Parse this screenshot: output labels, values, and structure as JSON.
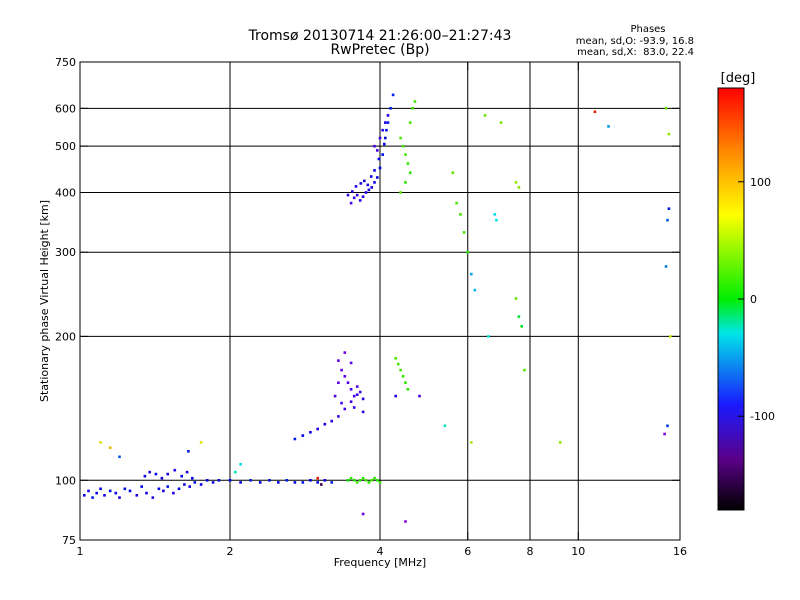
{
  "chart_data": {
    "type": "scatter",
    "title": "Tromsø 20130714 21:26:00–21:27:43",
    "subtitle": "RwPretec (Bp)",
    "xlabel": "Frequency [MHz]",
    "ylabel": "Stationary phase Virtual Height [km]",
    "x_scale": "log",
    "y_scale": "log",
    "xlim": [
      1,
      16
    ],
    "ylim": [
      75,
      750
    ],
    "x_ticks": [
      1,
      2,
      4,
      6,
      8,
      10,
      16
    ],
    "y_ticks": [
      75,
      100,
      200,
      300,
      400,
      500,
      600,
      750
    ],
    "grid_x": [
      2,
      4,
      6,
      8,
      10
    ],
    "grid_y": [
      100,
      200,
      300,
      400,
      500,
      600
    ],
    "info": {
      "title": "Phases",
      "line_o": "mean, sd,O: -93.9, 16.8",
      "line_x": "mean, sd,X:  83.0, 22.4"
    },
    "colorbar": {
      "label": "[deg]",
      "range": [
        -180,
        180
      ],
      "ticks": [
        100,
        0,
        -100
      ]
    },
    "series": [
      {
        "points": [
          [
            1.02,
            93,
            -110
          ],
          [
            1.04,
            95,
            -115
          ],
          [
            1.06,
            92,
            -100
          ],
          [
            1.08,
            94,
            -112
          ],
          [
            1.1,
            96,
            -108
          ],
          [
            1.12,
            93,
            -118
          ],
          [
            1.15,
            95,
            -105
          ],
          [
            1.18,
            94,
            -110
          ],
          [
            1.2,
            92,
            -114
          ],
          [
            1.23,
            96,
            -102
          ],
          [
            1.26,
            95,
            -109
          ],
          [
            1.3,
            93,
            -116
          ],
          [
            1.33,
            97,
            -104
          ],
          [
            1.36,
            94,
            -111
          ],
          [
            1.4,
            92,
            -119
          ],
          [
            1.44,
            96,
            -107
          ],
          [
            1.47,
            95,
            -113
          ],
          [
            1.5,
            97,
            -101
          ],
          [
            1.54,
            94,
            -117
          ],
          [
            1.58,
            96,
            -106
          ],
          [
            1.62,
            98,
            -110
          ],
          [
            1.66,
            97,
            -115
          ],
          [
            1.7,
            99,
            -103
          ],
          [
            1.75,
            98,
            -112
          ],
          [
            1.8,
            100,
            -108
          ],
          [
            1.85,
            99,
            -114
          ],
          [
            1.9,
            100,
            -105
          ],
          [
            1.35,
            102,
            -112
          ],
          [
            1.38,
            104,
            -118
          ],
          [
            1.42,
            103,
            -106
          ],
          [
            1.46,
            101,
            -115
          ],
          [
            1.5,
            103,
            -110
          ],
          [
            1.55,
            105,
            -120
          ],
          [
            1.6,
            102,
            -108
          ],
          [
            1.64,
            104,
            -116
          ],
          [
            1.68,
            101,
            -111
          ],
          [
            2.0,
            100,
            -105
          ],
          [
            2.1,
            99,
            -110
          ],
          [
            2.2,
            100,
            -100
          ],
          [
            2.3,
            99,
            -108
          ],
          [
            2.4,
            100,
            -103
          ],
          [
            2.5,
            99,
            -112
          ],
          [
            2.6,
            100,
            -98
          ],
          [
            2.7,
            99,
            -106
          ],
          [
            2.8,
            99,
            -101
          ],
          [
            2.9,
            100,
            -109
          ],
          [
            3.0,
            99,
            -104
          ],
          [
            3.1,
            100,
            -111
          ],
          [
            3.2,
            99,
            -99
          ],
          [
            2.7,
            122,
            -102
          ],
          [
            2.8,
            124,
            -108
          ],
          [
            2.9,
            126,
            -112
          ],
          [
            3.0,
            128,
            -115
          ],
          [
            3.1,
            131,
            -119
          ],
          [
            3.2,
            133,
            -122
          ],
          [
            3.3,
            136,
            -126
          ],
          [
            3.4,
            141,
            -130
          ],
          [
            3.5,
            146,
            -128
          ],
          [
            3.6,
            151,
            -124
          ],
          [
            3.7,
            148,
            -120
          ],
          [
            3.3,
            178,
            -140
          ],
          [
            3.35,
            170,
            -138
          ],
          [
            3.4,
            165,
            -135
          ],
          [
            3.45,
            160,
            -132
          ],
          [
            3.5,
            155,
            -130
          ],
          [
            3.55,
            150,
            -128
          ],
          [
            3.6,
            157,
            -134
          ],
          [
            3.65,
            153,
            -131
          ],
          [
            3.4,
            185,
            -141
          ],
          [
            3.5,
            176,
            -137
          ],
          [
            3.3,
            160,
            -136
          ],
          [
            3.25,
            150,
            -133
          ],
          [
            3.35,
            145,
            -129
          ],
          [
            3.55,
            142,
            -126
          ],
          [
            3.7,
            139,
            -123
          ],
          [
            3.5,
            380,
            -130
          ],
          [
            3.55,
            390,
            -127
          ],
          [
            3.6,
            395,
            -125
          ],
          [
            3.65,
            385,
            -122
          ],
          [
            3.7,
            392,
            -120
          ],
          [
            3.75,
            400,
            -118
          ],
          [
            3.8,
            405,
            -116
          ],
          [
            3.85,
            410,
            -114
          ],
          [
            3.9,
            420,
            -112
          ],
          [
            3.95,
            430,
            -110
          ],
          [
            4.0,
            450,
            -108
          ],
          [
            4.05,
            480,
            -106
          ],
          [
            4.1,
            520,
            -104
          ],
          [
            4.15,
            560,
            -102
          ],
          [
            4.2,
            600,
            -100
          ],
          [
            4.25,
            640,
            -98
          ],
          [
            3.45,
            395,
            -124
          ],
          [
            3.52,
            402,
            -121
          ],
          [
            3.58,
            412,
            -119
          ],
          [
            3.66,
            418,
            -115
          ],
          [
            3.72,
            423,
            -113
          ],
          [
            3.78,
            415,
            -117
          ],
          [
            3.84,
            432,
            -111
          ],
          [
            3.9,
            445,
            -109
          ],
          [
            3.98,
            470,
            -107
          ],
          [
            4.08,
            505,
            -105
          ],
          [
            4.12,
            540,
            -103
          ],
          [
            3.9,
            500,
            -130
          ],
          [
            4.0,
            520,
            -125
          ],
          [
            4.05,
            540,
            -120
          ],
          [
            3.95,
            490,
            -128
          ],
          [
            4.1,
            560,
            -118
          ],
          [
            4.15,
            580,
            -115
          ]
        ]
      },
      {
        "points": [
          [
            3.45,
            100,
            40
          ],
          [
            3.5,
            101,
            50
          ],
          [
            3.55,
            100,
            45
          ],
          [
            3.6,
            99,
            55
          ],
          [
            3.65,
            100,
            48
          ],
          [
            3.7,
            101,
            52
          ],
          [
            3.75,
            100,
            60
          ],
          [
            3.8,
            99,
            44
          ],
          [
            3.85,
            100,
            58
          ],
          [
            3.9,
            101,
            49
          ],
          [
            3.95,
            100,
            46
          ],
          [
            4.0,
            99,
            53
          ],
          [
            4.3,
            180,
            60
          ],
          [
            4.35,
            175,
            55
          ],
          [
            4.4,
            170,
            58
          ],
          [
            4.45,
            165,
            52
          ],
          [
            4.5,
            160,
            50
          ],
          [
            4.55,
            155,
            48
          ],
          [
            4.4,
            520,
            60
          ],
          [
            4.45,
            500,
            55
          ],
          [
            4.5,
            480,
            58
          ],
          [
            4.55,
            460,
            52
          ],
          [
            4.6,
            440,
            50
          ],
          [
            4.5,
            420,
            48
          ],
          [
            4.4,
            400,
            62
          ],
          [
            4.6,
            560,
            56
          ],
          [
            4.65,
            600,
            54
          ],
          [
            4.7,
            620,
            58
          ],
          [
            5.6,
            440,
            65
          ],
          [
            5.7,
            380,
            60
          ],
          [
            5.8,
            360,
            55
          ],
          [
            5.9,
            330,
            58
          ],
          [
            6.0,
            300,
            52
          ],
          [
            6.5,
            580,
            70
          ],
          [
            7.0,
            560,
            75
          ],
          [
            7.5,
            420,
            80
          ],
          [
            7.6,
            410,
            78
          ],
          [
            6.8,
            360,
            -40
          ],
          [
            6.85,
            350,
            -35
          ],
          [
            6.1,
            270,
            -55
          ],
          [
            6.2,
            250,
            -50
          ],
          [
            7.5,
            240,
            70
          ],
          [
            7.6,
            220,
            20
          ],
          [
            7.7,
            210,
            25
          ],
          [
            7.8,
            170,
            60
          ],
          [
            5.4,
            130,
            -20
          ],
          [
            6.1,
            120,
            90
          ],
          [
            6.6,
            200,
            -30
          ],
          [
            9.2,
            120,
            80
          ],
          [
            10.8,
            590,
            170
          ],
          [
            11.5,
            550,
            -60
          ],
          [
            15.0,
            600,
            70
          ],
          [
            15.2,
            530,
            80
          ],
          [
            15.3,
            200,
            100
          ],
          [
            15.1,
            130,
            -90
          ],
          [
            14.9,
            125,
            -150
          ],
          [
            15.0,
            280,
            -70
          ],
          [
            15.1,
            350,
            -80
          ],
          [
            15.2,
            370,
            -100
          ],
          [
            1.1,
            120,
            110
          ],
          [
            1.15,
            117,
            120
          ],
          [
            1.2,
            112,
            -80
          ],
          [
            1.75,
            120,
            110
          ],
          [
            1.65,
            115,
            -100
          ],
          [
            2.05,
            104,
            -20
          ],
          [
            2.1,
            108,
            -40
          ],
          [
            3.0,
            101,
            170
          ],
          [
            3.05,
            98,
            -175
          ],
          [
            3.7,
            85,
            -140
          ],
          [
            4.5,
            82,
            -150
          ],
          [
            4.3,
            150,
            -120
          ],
          [
            4.8,
            150,
            -130
          ]
        ]
      }
    ]
  }
}
